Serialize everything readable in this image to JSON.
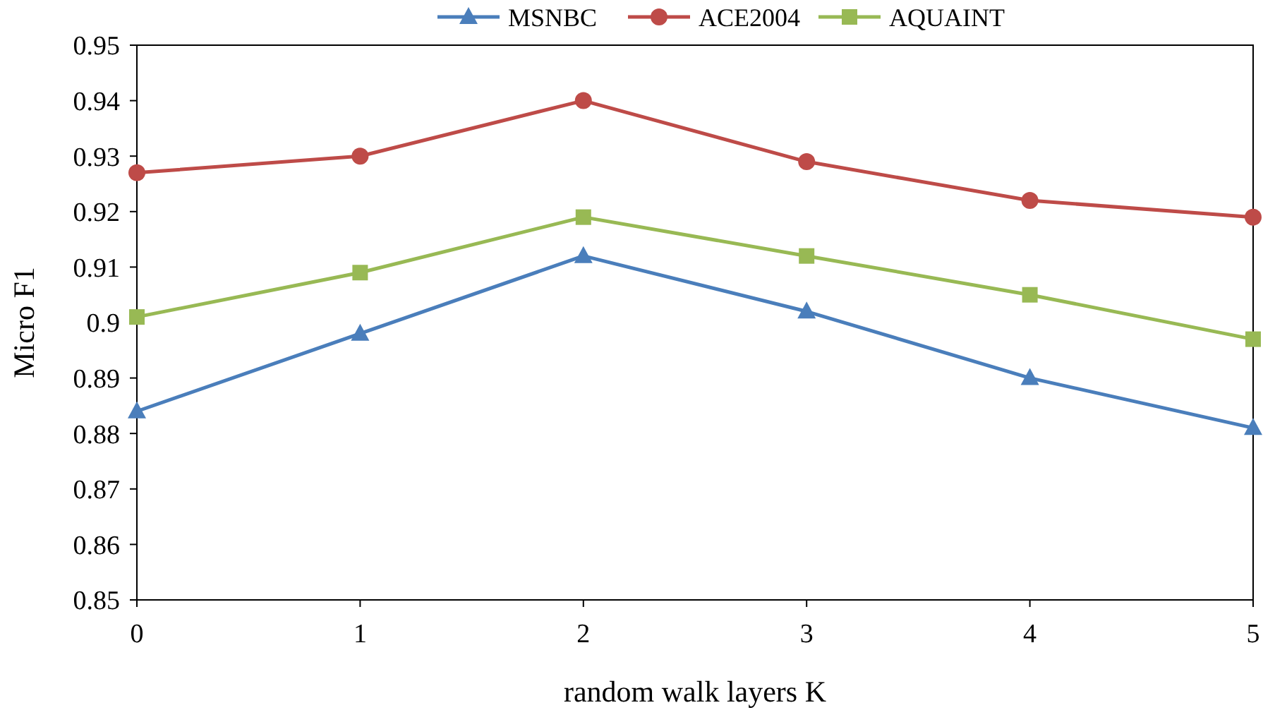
{
  "chart_data": {
    "type": "line",
    "xlabel": "random walk layers K",
    "ylabel": "Micro F1",
    "x": [
      0,
      1,
      2,
      3,
      4,
      5
    ],
    "xlim": [
      0,
      5
    ],
    "xticks": [
      0,
      1,
      2,
      3,
      4,
      5
    ],
    "ylim": [
      0.85,
      0.95
    ],
    "yticks": [
      0.85,
      0.86,
      0.87,
      0.88,
      0.89,
      0.9,
      0.91,
      0.92,
      0.93,
      0.94,
      0.95
    ],
    "grid": false,
    "legend": "top",
    "line_style": "solid",
    "series": [
      {
        "name": "MSNBC",
        "color": "#4a7ebb",
        "marker": "triangle",
        "values": [
          0.884,
          0.898,
          0.912,
          0.902,
          0.89,
          0.881
        ]
      },
      {
        "name": "ACE2004",
        "color": "#be4b48",
        "marker": "circle",
        "values": [
          0.927,
          0.93,
          0.94,
          0.929,
          0.922,
          0.919
        ]
      },
      {
        "name": "AQUAINT",
        "color": "#98b954",
        "marker": "square",
        "values": [
          0.901,
          0.909,
          0.919,
          0.912,
          0.905,
          0.897
        ]
      }
    ]
  }
}
